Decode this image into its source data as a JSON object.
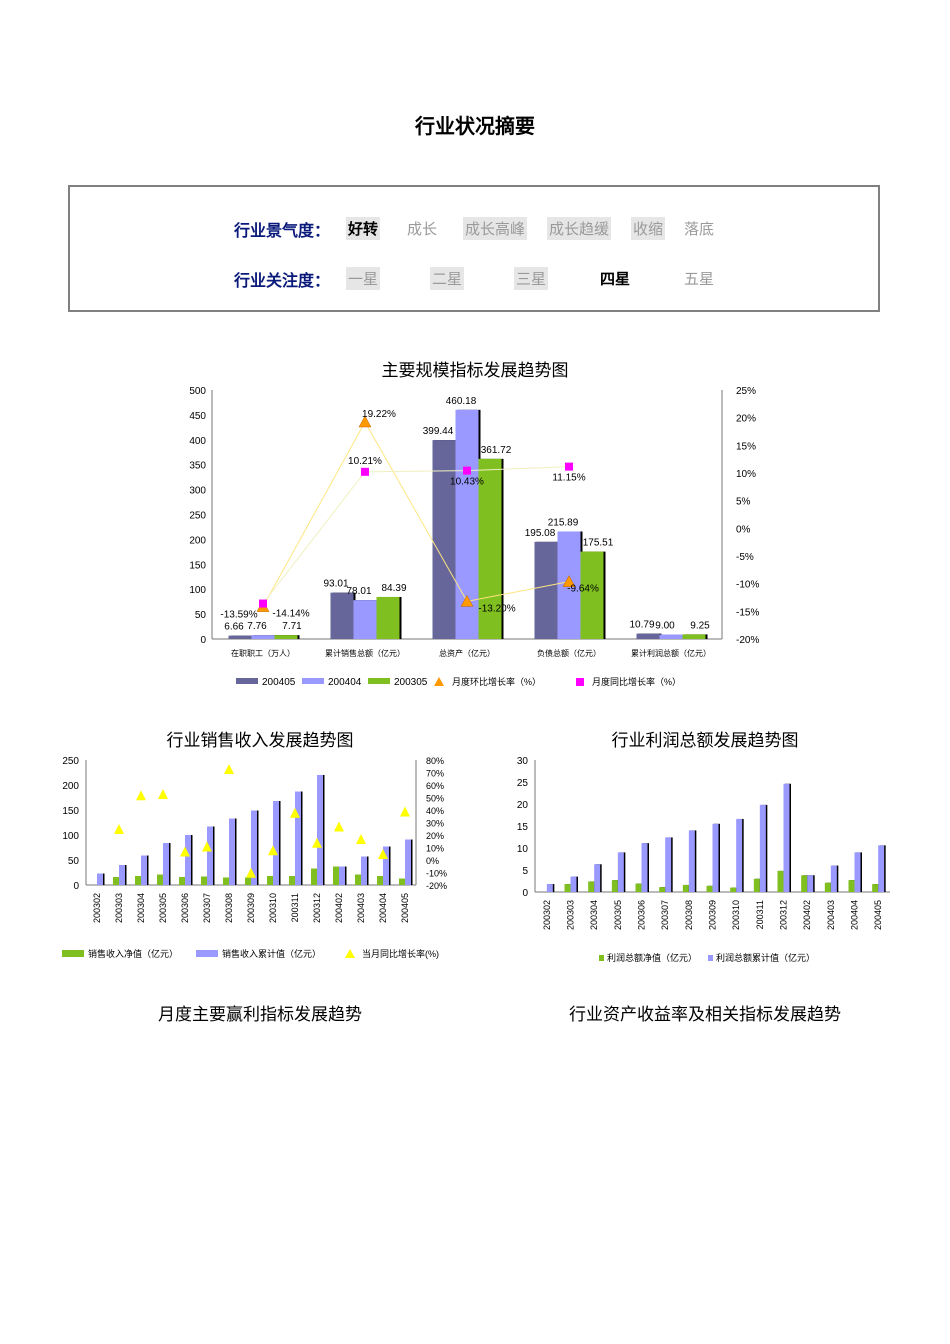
{
  "page_title": "行业状况摘要",
  "climate": {
    "label": "行业景气度",
    "colon": "：",
    "options": [
      "好转",
      "成长",
      "成长高峰",
      "成长趋缓",
      "收缩",
      "落底"
    ],
    "selected_index": 0
  },
  "attention": {
    "label": "行业关注度",
    "colon": "：",
    "options": [
      "一星",
      "二星",
      "三星",
      "四星",
      "五星"
    ],
    "selected_index": 3
  },
  "chart_data": [
    {
      "type": "bar",
      "title": "主要规模指标发展趋势图",
      "categories": [
        "在职职工（万人）",
        "累计销售总额（亿元）",
        "总资产（亿元）",
        "负债总额（亿元）",
        "累计利润总额（亿元）"
      ],
      "series": [
        {
          "name": "200405",
          "values": [
            6.66,
            93.01,
            399.44,
            195.08,
            10.79
          ],
          "color": "#66669a"
        },
        {
          "name": "200404",
          "values": [
            7.76,
            78.01,
            460.18,
            215.89,
            9.0
          ],
          "color": "#9999ff"
        },
        {
          "name": "200305",
          "values": [
            7.71,
            84.39,
            361.72,
            175.51,
            9.25
          ],
          "color": "#7fbf1f"
        }
      ],
      "line_series": [
        {
          "name": "月度环比增长率（%）",
          "values": [
            -14.14,
            19.22,
            -13.2,
            -9.64,
            null
          ],
          "color": "#ff9900"
        },
        {
          "name": "月度同比增长率（%）",
          "values": [
            -13.59,
            10.21,
            10.43,
            11.15,
            null
          ],
          "color": "#ff00ff"
        }
      ],
      "y_left": {
        "min": 0,
        "max": 500,
        "ticks": [
          "0",
          "50",
          "100",
          "150",
          "200",
          "250",
          "300",
          "350",
          "400",
          "450",
          "500"
        ]
      },
      "y_right": {
        "min": -20,
        "max": 25,
        "ticks": [
          "-20%",
          "-15%",
          "-10%",
          "-5%",
          "0%",
          "5%",
          "10%",
          "15%",
          "20%",
          "25%"
        ]
      },
      "bar_labels": [
        [
          "6.66",
          "93.01",
          "399.44",
          "195.08",
          "10.79"
        ],
        [
          "7.76",
          "78.01",
          "460.18",
          "215.89",
          "9.00"
        ],
        [
          "7.71",
          "84.39",
          "361.72",
          "175.51",
          "9.25"
        ]
      ],
      "line_labels": [
        [
          "-14.14%",
          "19.22%",
          "-13.20%",
          "-9.64%",
          ""
        ],
        [
          "-13.59%",
          "10.21%",
          "10.43%",
          "11.15%",
          ""
        ]
      ],
      "legend": "bottom"
    },
    {
      "type": "bar",
      "title": "行业销售收入发展趋势图",
      "categories": [
        "200302",
        "200303",
        "200304",
        "200305",
        "200306",
        "200307",
        "200308",
        "200309",
        "200310",
        "200311",
        "200312",
        "200402",
        "200403",
        "200404",
        "200405"
      ],
      "series": [
        {
          "name": "销售收入净值（亿元）",
          "values": [
            0,
            16,
            18,
            21,
            16,
            17,
            15,
            15,
            18,
            18,
            33,
            37,
            21,
            18,
            13
          ],
          "color": "#7fbf1f"
        },
        {
          "name": "销售收入累计值（亿元）",
          "values": [
            23,
            40,
            59,
            84,
            100,
            117,
            133,
            149,
            168,
            187,
            220,
            37,
            57,
            77,
            91
          ],
          "color": "#9999ff"
        }
      ],
      "line_series": [
        {
          "name": "当月同比增长率(%)",
          "values": [
            null,
            24,
            51,
            52,
            6,
            10,
            72,
            -11,
            7,
            37,
            13,
            26,
            16,
            4,
            38
          ],
          "color": "#ffff00"
        }
      ],
      "y_left": {
        "min": 0,
        "max": 250,
        "ticks": [
          "0",
          "50",
          "100",
          "150",
          "200",
          "250"
        ]
      },
      "y_right": {
        "min": -20,
        "max": 80,
        "ticks": [
          "-20%",
          "-10%",
          "0%",
          "10%",
          "20%",
          "30%",
          "40%",
          "50%",
          "60%",
          "70%",
          "80%"
        ]
      },
      "legend": "bottom"
    },
    {
      "type": "bar",
      "title": "行业利润总额发展趋势图",
      "categories": [
        "200302",
        "200303",
        "200304",
        "200305",
        "200306",
        "200307",
        "200308",
        "200309",
        "200310",
        "200311",
        "200312",
        "200402",
        "200403",
        "200404",
        "200405"
      ],
      "series": [
        {
          "name": "利润总额净值（亿元）",
          "values": [
            0,
            1.8,
            2.4,
            2.7,
            1.9,
            1.1,
            1.6,
            1.4,
            1.0,
            3.0,
            4.8,
            3.8,
            2.1,
            2.7,
            1.8
          ],
          "color": "#7fbf1f"
        },
        {
          "name": "利润总额累计值（亿元）",
          "values": [
            1.8,
            3.5,
            6.3,
            9.0,
            11.1,
            12.4,
            14.0,
            15.5,
            16.6,
            19.8,
            24.6,
            3.8,
            6.0,
            9.0,
            10.6
          ],
          "color": "#9999ff"
        }
      ],
      "y_left": {
        "min": 0,
        "max": 30,
        "ticks": [
          "0",
          "5",
          "10",
          "15",
          "20",
          "25",
          "30"
        ]
      },
      "legend": "bottom"
    }
  ],
  "sections": {
    "left": "月度主要赢利指标发展趋势",
    "right": "行业资产收益率及相关指标发展趋势"
  }
}
